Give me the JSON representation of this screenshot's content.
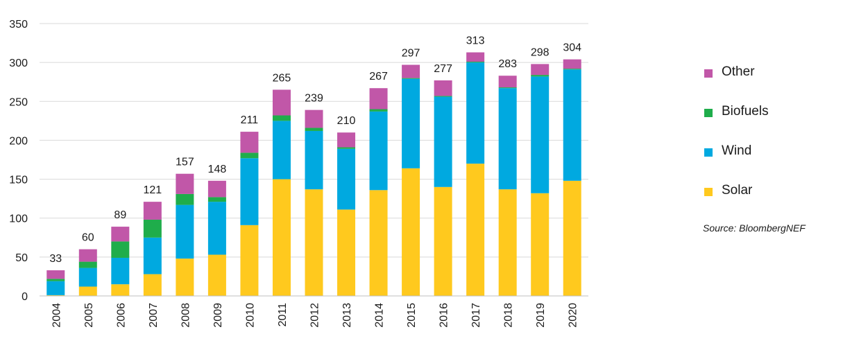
{
  "chart_data": {
    "type": "bar",
    "stacked": true,
    "categories": [
      "2004",
      "2005",
      "2006",
      "2007",
      "2008",
      "2009",
      "2010",
      "2011",
      "2012",
      "2013",
      "2014",
      "2015",
      "2016",
      "2017",
      "2018",
      "2019",
      "2020"
    ],
    "series": [
      {
        "name": "Solar",
        "color": "#FFC91E",
        "values": [
          1,
          12,
          15,
          28,
          48,
          53,
          91,
          150,
          137,
          111,
          136,
          164,
          140,
          170,
          137,
          132,
          148
        ]
      },
      {
        "name": "Wind",
        "color": "#00A9E0",
        "values": [
          18,
          24,
          34,
          47,
          69,
          68,
          86,
          75,
          75,
          78,
          101,
          115,
          116,
          130,
          130,
          150,
          143
        ]
      },
      {
        "name": "Biofuels",
        "color": "#1FAD4B",
        "values": [
          3,
          8,
          21,
          23,
          14,
          6,
          7,
          7,
          4,
          2,
          3,
          1,
          1,
          1,
          1,
          2,
          1
        ]
      },
      {
        "name": "Other",
        "color": "#C157A8",
        "values": [
          11,
          16,
          19,
          23,
          26,
          21,
          27,
          33,
          23,
          19,
          27,
          17,
          20,
          12,
          15,
          14,
          12
        ]
      }
    ],
    "totals": [
      33,
      60,
      89,
      121,
      157,
      148,
      211,
      265,
      239,
      210,
      267,
      297,
      277,
      313,
      283,
      298,
      304
    ],
    "ylim": [
      0,
      350
    ],
    "yticks": [
      0,
      50,
      100,
      150,
      200,
      250,
      300,
      350
    ],
    "legend": [
      "Other",
      "Biofuels",
      "Wind",
      "Solar"
    ],
    "grid": true,
    "legend_position": "right",
    "source": "Source: BloombergNEF"
  }
}
